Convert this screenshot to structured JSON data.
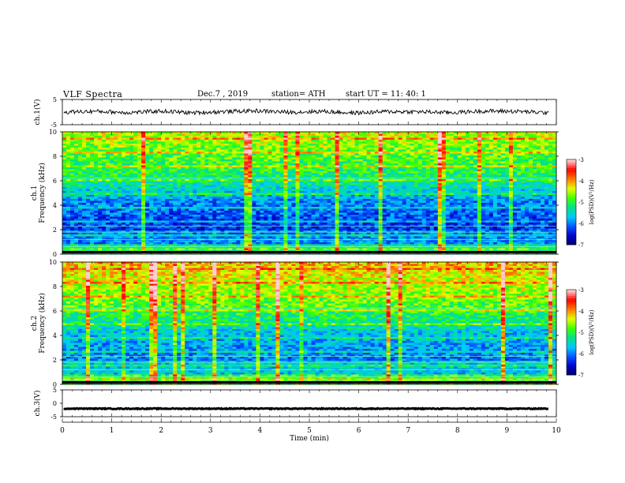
{
  "header": {
    "title": "VLF  Spectra",
    "date": "Dec.7  , 2019",
    "station": "station= ATH",
    "start": "start  UT  =    11: 40: 1"
  },
  "colors": {
    "spectrogram_ramp": [
      "#000060",
      "#0000c8",
      "#0050ff",
      "#00c8ff",
      "#00e090",
      "#40ff00",
      "#e0ff00",
      "#ff8000",
      "#ff0000",
      "#ffd0d0"
    ],
    "trace": "#000000"
  },
  "chart_data": [
    {
      "type": "line",
      "name": "ch1",
      "ylabel": "ch.1(V)",
      "ylim": [
        -5,
        5
      ],
      "yticks": [
        "5",
        "-5"
      ],
      "description_of_series": "noisy voltage trace centred near 0",
      "samples_approx": [
        0,
        0.3,
        -0.2,
        0.4,
        -0.3,
        0.2,
        0.5,
        -0.1,
        0.3,
        -0.4,
        0.2,
        0.1,
        -0.2,
        0.4,
        0.3,
        -0.3
      ]
    },
    {
      "type": "heatmap",
      "name": "ch1-spectrogram",
      "ylabel": "ch.1\nFrequency  (kHz)",
      "ylim": [
        0,
        10
      ],
      "yticks": [
        "0",
        "2",
        "4",
        "6",
        "8",
        "10"
      ],
      "xlim": [
        0,
        10
      ],
      "colorbar": {
        "label": "log(PSD)(V²/Hz)",
        "range": [
          -7,
          -3
        ],
        "ticks": [
          "-3",
          "-4",
          "-5",
          "-6",
          "-7"
        ]
      }
    },
    {
      "type": "heatmap",
      "name": "ch2-spectrogram",
      "ylabel": "ch.2\nFrequency  (kHz)",
      "ylim": [
        0,
        10
      ],
      "yticks": [
        "0",
        "2",
        "4",
        "6",
        "8",
        "10"
      ],
      "xlim": [
        0,
        10
      ],
      "colorbar": {
        "label": "log(PSD)(V²/Hz)",
        "range": [
          -7,
          -3
        ],
        "ticks": [
          "-3",
          "-4",
          "-5",
          "-6",
          "-7"
        ]
      }
    },
    {
      "type": "line",
      "name": "ch3",
      "ylabel": "ch.3(V)",
      "ylim": [
        -5,
        5
      ],
      "yticks": [
        "5",
        "0",
        "-5"
      ],
      "samples_approx": [
        -2,
        -2,
        -2,
        -2,
        -2,
        -2,
        -2,
        -2,
        -2,
        -2
      ]
    }
  ],
  "xaxis": {
    "label": "Time  (min)",
    "ticks": [
      "0",
      "1",
      "2",
      "3",
      "4",
      "5",
      "6",
      "7",
      "8",
      "9",
      "10"
    ],
    "range": [
      0,
      10
    ]
  }
}
